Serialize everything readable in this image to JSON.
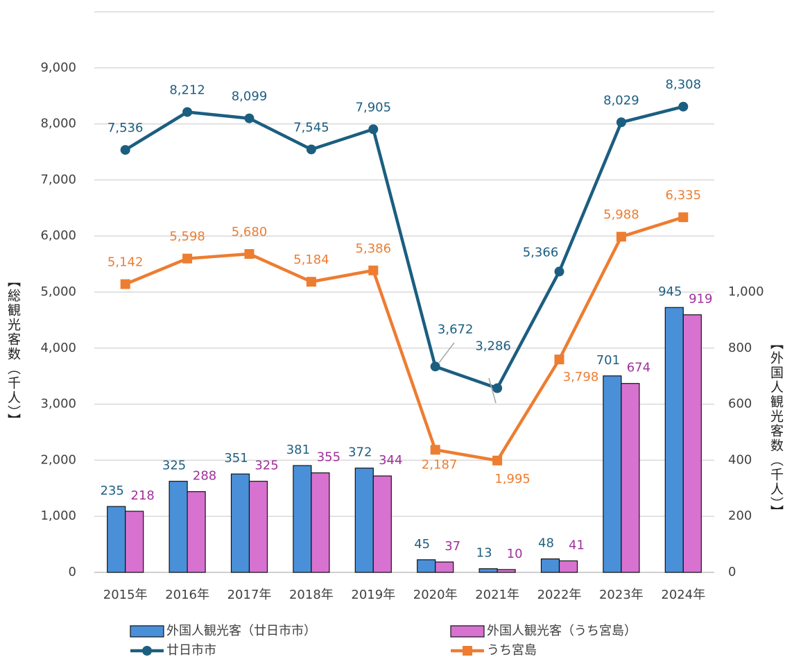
{
  "chart_data": {
    "type": "combo",
    "categories": [
      "2015年",
      "2016年",
      "2017年",
      "2018年",
      "2019年",
      "2020年",
      "2021年",
      "2022年",
      "2023年",
      "2024年"
    ],
    "y_label": "【総観光客数（千人）】",
    "y2_label": "【外国人観光客数（千人）】",
    "ylim": [
      0,
      10000
    ],
    "yticks": [
      0,
      {
        "value": 1000,
        "label": "1,000"
      },
      {
        "value": 2000,
        "label": "2,000"
      },
      {
        "value": 3000,
        "label": "3,000"
      },
      {
        "value": 4000,
        "label": "4,000"
      },
      {
        "value": 5000,
        "label": "5,000"
      },
      {
        "value": 6000,
        "label": "6,000"
      },
      {
        "value": 7000,
        "label": "7,000"
      },
      {
        "value": 8000,
        "label": "8,000"
      },
      {
        "value": 9000,
        "label": "9,000"
      }
    ],
    "y2lim": [
      0,
      2000
    ],
    "y2ticks": [
      0,
      200,
      400,
      600,
      800,
      {
        "value": 1000,
        "label": "1,000"
      }
    ],
    "grid": true,
    "legend": "bottom",
    "series": [
      {
        "name": "外国人観光客（廿日市市）",
        "type": "bar",
        "axis": "y2",
        "color": "#4a90d9",
        "label_color": "#1f5f7f",
        "values": [
          235,
          325,
          351,
          381,
          372,
          45,
          13,
          48,
          701,
          945
        ]
      },
      {
        "name": "外国人観光客（うち宮島）",
        "type": "bar",
        "axis": "y2",
        "color": "#d872d0",
        "label_color": "#a0309a",
        "values": [
          218,
          288,
          325,
          355,
          344,
          37,
          10,
          41,
          674,
          919
        ]
      },
      {
        "name": "廿日市市",
        "type": "line",
        "marker": "circle",
        "color": "#1b5e80",
        "values": [
          7536,
          8212,
          8099,
          7545,
          7905,
          3672,
          3286,
          5366,
          8029,
          8308
        ],
        "value_labels": [
          "7,536",
          "8,212",
          "8,099",
          "7,545",
          "7,905",
          "3,672",
          "3,286",
          "5,366",
          "8,029",
          "8,308"
        ]
      },
      {
        "name": "うち宮島",
        "type": "line",
        "marker": "square",
        "color": "#ed7d31",
        "values": [
          5142,
          5598,
          5680,
          5184,
          5386,
          2187,
          1995,
          3798,
          5988,
          6335
        ],
        "value_labels": [
          "5,142",
          "5,598",
          "5,680",
          "5,184",
          "5,386",
          "2,187",
          "1,995",
          "3,798",
          "5,988",
          "6,335"
        ]
      }
    ]
  }
}
